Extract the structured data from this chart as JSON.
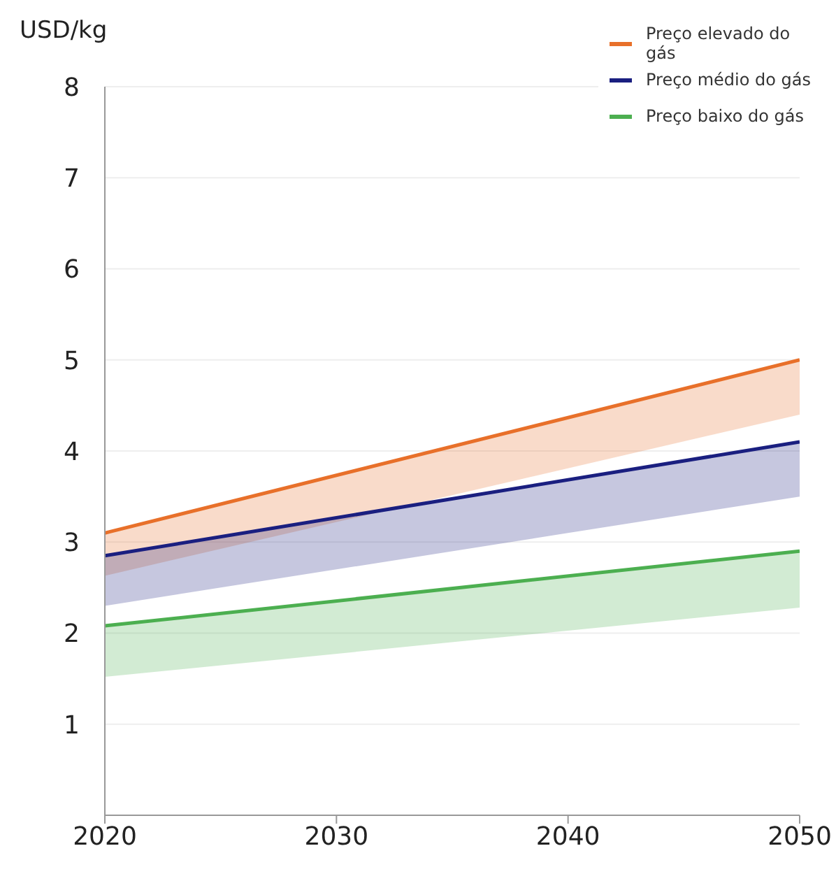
{
  "chart_data": {
    "type": "line",
    "ylabel": "USD/kg",
    "x": [
      2020,
      2050
    ],
    "xlim": [
      2020,
      2050
    ],
    "xticks": [
      2020,
      2030,
      2040,
      2050
    ],
    "ylim": [
      0,
      8
    ],
    "yticks": [
      1,
      2,
      3,
      4,
      5,
      6,
      7,
      8
    ],
    "grid": "y",
    "legend": "top right",
    "marker": "none",
    "line_style": "solid",
    "series": [
      {
        "name": "Preço elevado do gás",
        "color": "#e8702a",
        "values": [
          3.1,
          5.0
        ],
        "lower": [
          2.63,
          4.4
        ],
        "upper": [
          3.1,
          5.0
        ]
      },
      {
        "name": "Preço médio do gás",
        "color": "#1a1f80",
        "values": [
          2.85,
          4.1
        ],
        "lower": [
          2.3,
          3.5
        ],
        "upper": [
          2.85,
          4.1
        ]
      },
      {
        "name": "Preço baixo do gás",
        "color": "#4caf50",
        "values": [
          2.08,
          2.9
        ],
        "lower": [
          1.52,
          2.28
        ],
        "upper": [
          2.08,
          2.9
        ]
      }
    ]
  }
}
